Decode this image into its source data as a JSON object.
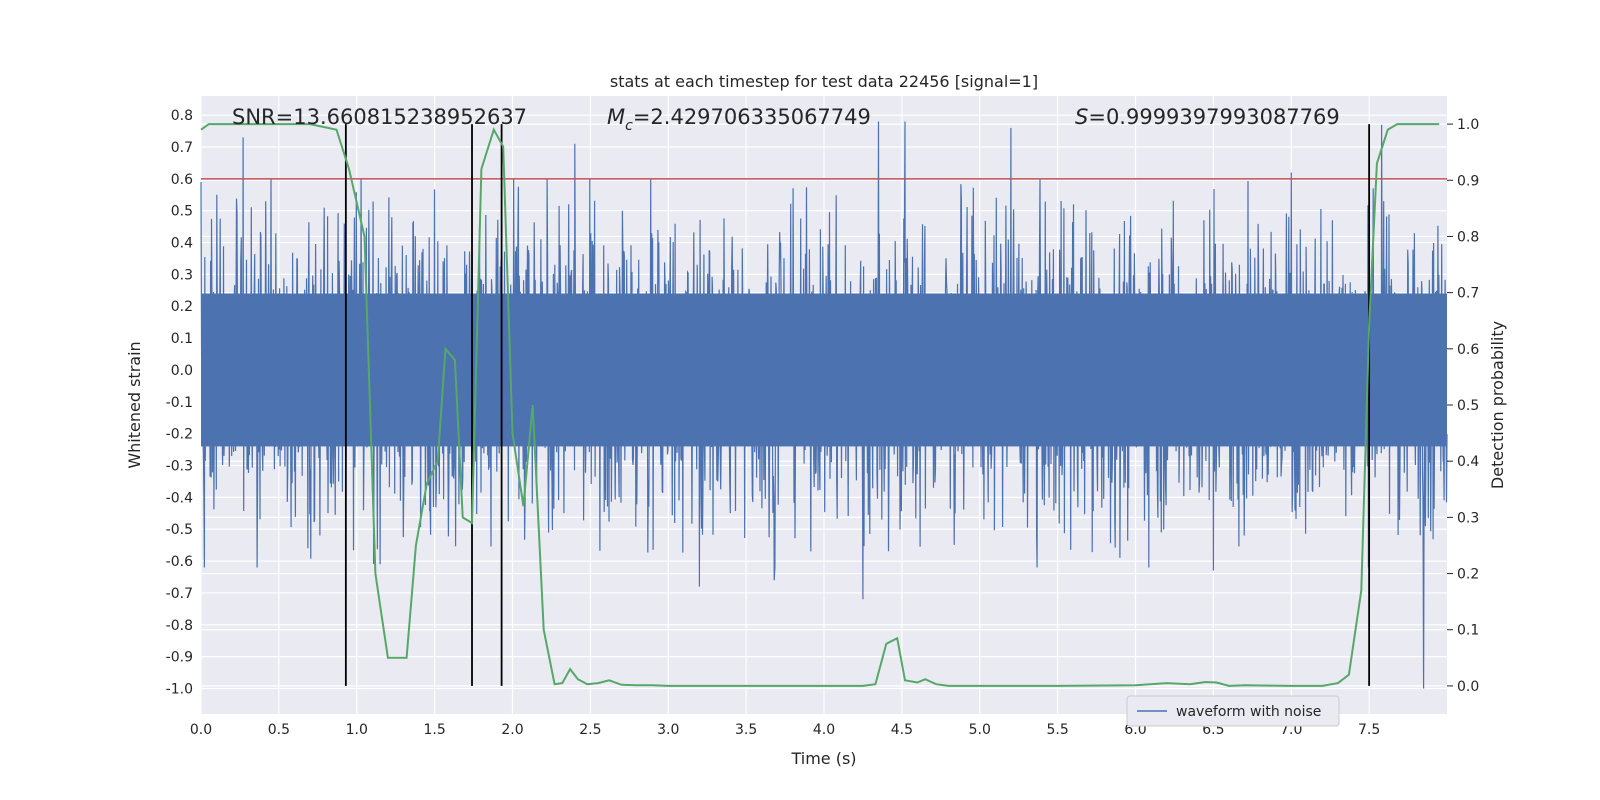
{
  "chart_data": {
    "type": "line",
    "title": "stats at each timestep for test data 22456 [signal=1]",
    "xlabel": "Time (s)",
    "ylabel": "Whitened strain",
    "ylabel_right": "Detection probability",
    "xlim": [
      0.0,
      8.0
    ],
    "ylim": [
      -1.08,
      0.86
    ],
    "ylim_right": [
      -0.05,
      1.05
    ],
    "xticks": [
      "0.0",
      "0.5",
      "1.0",
      "1.5",
      "2.0",
      "2.5",
      "3.0",
      "3.5",
      "4.0",
      "4.5",
      "5.0",
      "5.5",
      "6.0",
      "6.5",
      "7.0",
      "7.5"
    ],
    "xtick_values": [
      0.0,
      0.5,
      1.0,
      1.5,
      2.0,
      2.5,
      3.0,
      3.5,
      4.0,
      4.5,
      5.0,
      5.5,
      6.0,
      6.5,
      7.0,
      7.5
    ],
    "yticks": [
      "0.8",
      "0.7",
      "0.6",
      "0.5",
      "0.4",
      "0.3",
      "0.2",
      "0.1",
      "0.0",
      "-0.1",
      "-0.2",
      "-0.3",
      "-0.4",
      "-0.5",
      "-0.6",
      "-0.7",
      "-0.8",
      "-0.9",
      "-1.0"
    ],
    "ytick_values": [
      0.8,
      0.7,
      0.6,
      0.5,
      0.4,
      0.3,
      0.2,
      0.1,
      0.0,
      -0.1,
      -0.2,
      -0.3,
      -0.4,
      -0.5,
      -0.6,
      -0.7,
      -0.8,
      -0.9,
      -1.0
    ],
    "yticks_right": [
      "1.0",
      "0.9",
      "0.8",
      "0.7",
      "0.6",
      "0.5",
      "0.4",
      "0.3",
      "0.2",
      "0.1",
      "0.0"
    ],
    "ytick_right_values": [
      1.0,
      0.9,
      0.8,
      0.7,
      0.6,
      0.5,
      0.4,
      0.3,
      0.2,
      0.1,
      0.0
    ],
    "annotations": {
      "snr": "SNR=13.660815238952637",
      "mc_symbol": "M",
      "mc_sub": "c",
      "mc_value": "=2.429706335067749",
      "s_symbol": "S",
      "s_value": "=0.9999397993087769"
    },
    "threshold": {
      "value": 0.6,
      "color": "#c44e52"
    },
    "vlines": [
      0.93,
      1.74,
      1.93,
      7.5
    ],
    "legend": {
      "label": "waveform with noise",
      "location": "lower-right"
    },
    "series": [
      {
        "name": "waveform with noise",
        "color": "#4c72b0",
        "axis": "left",
        "amplitude_envelope": 0.24,
        "x": [
          0.0,
          0.27,
          0.36,
          0.93,
          1.15,
          2.4,
          3.2,
          3.68,
          4.25,
          4.35,
          4.52,
          5.2,
          5.9,
          6.5,
          7.0,
          7.58,
          7.85
        ],
        "y": [
          0.59,
          0.73,
          -0.62,
          -0.5,
          -0.61,
          0.71,
          -0.68,
          -0.66,
          -0.72,
          0.78,
          0.78,
          0.76,
          -0.59,
          -0.63,
          0.62,
          0.77,
          -1.0
        ]
      },
      {
        "name": "detection probability",
        "color": "#55a868",
        "axis": "right",
        "x": [
          0.0,
          0.05,
          0.1,
          0.2,
          0.3,
          0.5,
          0.7,
          0.87,
          0.95,
          1.05,
          1.12,
          1.2,
          1.32,
          1.38,
          1.45,
          1.52,
          1.57,
          1.63,
          1.68,
          1.74,
          1.8,
          1.88,
          1.94,
          2.0,
          2.07,
          2.13,
          2.2,
          2.27,
          2.32,
          2.37,
          2.42,
          2.48,
          2.55,
          2.62,
          2.7,
          2.8,
          2.9,
          3.0,
          3.5,
          4.0,
          4.25,
          4.33,
          4.4,
          4.47,
          4.52,
          4.6,
          4.65,
          4.72,
          4.8,
          5.0,
          5.5,
          6.0,
          6.2,
          6.35,
          6.45,
          6.52,
          6.6,
          6.7,
          7.0,
          7.2,
          7.3,
          7.37,
          7.45,
          7.5,
          7.55,
          7.62,
          7.68,
          7.75,
          7.95
        ],
        "y": [
          0.99,
          1.0,
          1.0,
          1.0,
          1.0,
          1.0,
          1.0,
          0.99,
          0.92,
          0.8,
          0.2,
          0.05,
          0.05,
          0.25,
          0.36,
          0.4,
          0.6,
          0.58,
          0.3,
          0.29,
          0.92,
          0.99,
          0.96,
          0.45,
          0.32,
          0.5,
          0.1,
          0.003,
          0.005,
          0.03,
          0.012,
          0.003,
          0.005,
          0.01,
          0.002,
          0.001,
          0.001,
          0.0,
          0.0,
          0.0,
          0.0,
          0.003,
          0.075,
          0.085,
          0.01,
          0.006,
          0.012,
          0.003,
          0.0,
          0.0,
          0.0,
          0.001,
          0.005,
          0.003,
          0.007,
          0.006,
          0.0,
          0.001,
          0.0,
          0.0,
          0.005,
          0.02,
          0.17,
          0.64,
          0.93,
          0.99,
          1.0,
          1.0,
          1.0
        ]
      }
    ]
  }
}
